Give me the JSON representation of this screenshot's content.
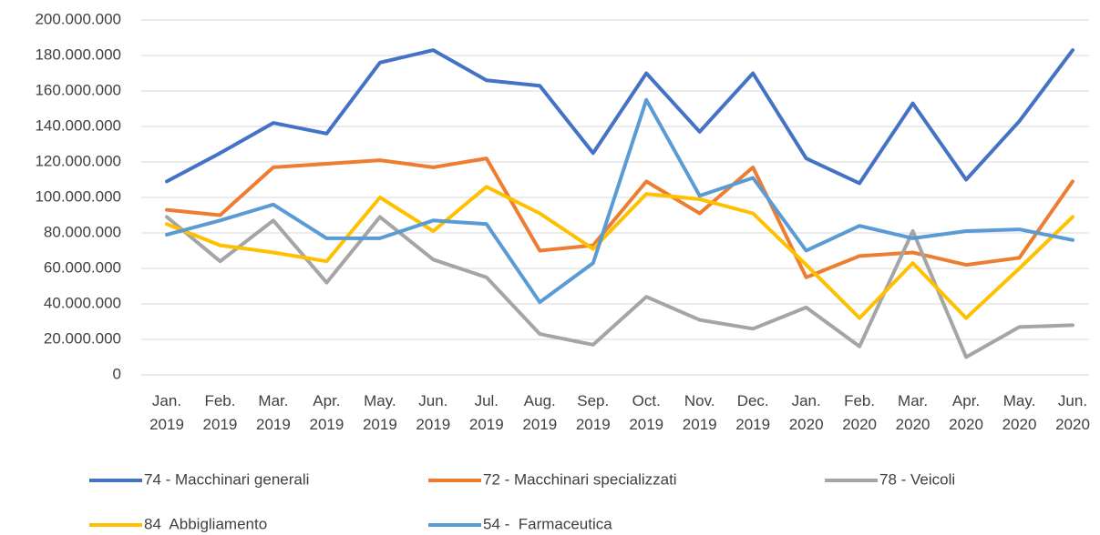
{
  "chart_data": {
    "type": "line",
    "categories": [
      "Jan. 2019",
      "Feb. 2019",
      "Mar. 2019",
      "Apr. 2019",
      "May. 2019",
      "Jun. 2019",
      "Jul. 2019",
      "Aug. 2019",
      "Sep. 2019",
      "Oct. 2019",
      "Nov. 2019",
      "Dec. 2019",
      "Jan. 2020",
      "Feb. 2020",
      "Mar. 2020",
      "Apr. 2020",
      "May. 2020",
      "Jun. 2020"
    ],
    "series": [
      {
        "name": "74 - Macchinari generali",
        "color": "#4472c4",
        "values": [
          109000000,
          125000000,
          142000000,
          136000000,
          176000000,
          183000000,
          166000000,
          163000000,
          125000000,
          170000000,
          137000000,
          170000000,
          122000000,
          108000000,
          153000000,
          110000000,
          143000000,
          183000000
        ]
      },
      {
        "name": "72 - Macchinari specializzati",
        "color": "#ed7d31",
        "values": [
          93000000,
          90000000,
          117000000,
          119000000,
          121000000,
          117000000,
          122000000,
          70000000,
          73000000,
          109000000,
          91000000,
          117000000,
          55000000,
          67000000,
          69000000,
          62000000,
          66000000,
          109000000
        ]
      },
      {
        "name": "78 - Veicoli",
        "color": "#a5a5a5",
        "values": [
          89000000,
          64000000,
          87000000,
          52000000,
          89000000,
          65000000,
          55000000,
          23000000,
          17000000,
          44000000,
          31000000,
          26000000,
          38000000,
          16000000,
          81000000,
          10000000,
          27000000,
          28000000
        ]
      },
      {
        "name": "84  Abbigliamento",
        "color": "#ffc000",
        "values": [
          85000000,
          73000000,
          69000000,
          64000000,
          100000000,
          81000000,
          106000000,
          91000000,
          71000000,
          102000000,
          99000000,
          91000000,
          62000000,
          32000000,
          63000000,
          32000000,
          60000000,
          89000000
        ]
      },
      {
        "name": "54 -  Farmaceutica",
        "color": "#5b9bd5",
        "values": [
          79000000,
          87000000,
          96000000,
          77000000,
          77000000,
          87000000,
          85000000,
          41000000,
          63000000,
          155000000,
          101000000,
          111000000,
          70000000,
          84000000,
          77000000,
          81000000,
          82000000,
          76000000
        ]
      }
    ],
    "ylim": [
      0,
      200000000
    ],
    "yticks": [
      0,
      {
        "value": 20000000,
        "label": "20.000.000"
      },
      {
        "value": 40000000,
        "label": "40.000.000"
      },
      {
        "value": 60000000,
        "label": "60.000.000"
      },
      {
        "value": 80000000,
        "label": "80.000.000"
      },
      {
        "value": 100000000,
        "label": "100.000.000"
      },
      {
        "value": 120000000,
        "label": "120.000.000"
      },
      {
        "value": 140000000,
        "label": "140.000.000"
      },
      {
        "value": 160000000,
        "label": "160.000.000"
      },
      {
        "value": 180000000,
        "label": "180.000.000"
      },
      {
        "value": 200000000,
        "label": "200.000.000"
      }
    ],
    "grid": true,
    "legend": "bottom"
  }
}
